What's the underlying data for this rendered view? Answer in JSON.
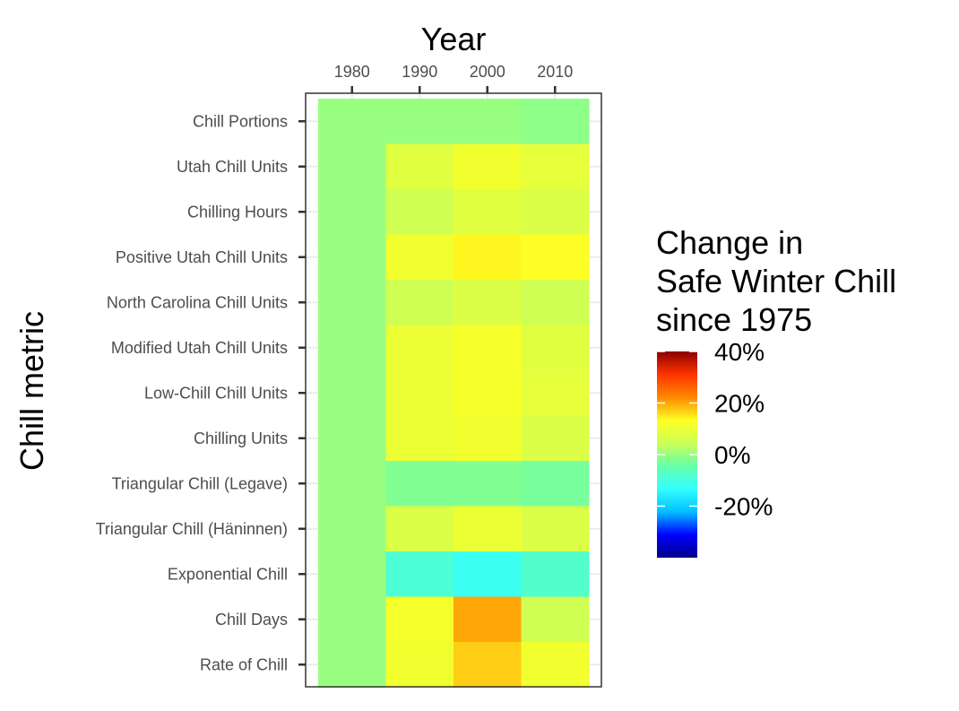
{
  "chart_data": {
    "type": "heatmap",
    "xlabel": "Year",
    "ylabel": "Chill metric",
    "x_ticks": [
      "1980",
      "1990",
      "2000",
      "2010"
    ],
    "x_categories": [
      1980,
      1990,
      2000,
      2010
    ],
    "y_categories": [
      "Chill Portions",
      "Utah Chill Units",
      "Chilling Hours",
      "Positive Utah Chill Units",
      "North Carolina Chill Units",
      "Modified Utah Chill Units",
      "Low-Chill Chill Units",
      "Chilling Units",
      "Triangular Chill (Legave)",
      "Triangular Chill (Häninnen)",
      "Exponential Chill",
      "Chill Days",
      "Rate of Chill"
    ],
    "values": [
      [
        0,
        0,
        0,
        -1
      ],
      [
        0,
        8,
        11,
        9
      ],
      [
        0,
        5,
        8,
        7
      ],
      [
        0,
        11,
        14,
        13
      ],
      [
        0,
        5,
        7,
        5
      ],
      [
        0,
        10,
        12,
        8
      ],
      [
        0,
        10,
        12,
        9
      ],
      [
        0,
        10,
        11,
        7
      ],
      [
        0,
        -2,
        -2,
        -3
      ],
      [
        0,
        7,
        10,
        7
      ],
      [
        0,
        -9,
        -12,
        -8
      ],
      [
        0,
        12,
        20,
        5
      ],
      [
        0,
        11,
        17,
        11
      ]
    ],
    "legend": {
      "title_lines": [
        "Change in",
        "Safe Winter Chill",
        "since 1975"
      ],
      "ticks": [
        {
          "label": "40%",
          "value": 40
        },
        {
          "label": "20%",
          "value": 20
        },
        {
          "label": "0%",
          "value": 0
        },
        {
          "label": "-20%",
          "value": -20
        }
      ],
      "range": [
        -40,
        40
      ],
      "colors": [
        "#00008B",
        "#0000FF",
        "#00BFFF",
        "#33FFFF",
        "#66FFAA",
        "#CCFF55",
        "#FFFF22",
        "#FF8800",
        "#FF3300",
        "#8B0000"
      ],
      "placement": "right"
    },
    "grid": true
  },
  "colors": {
    "background": "#ffffff",
    "panel_border": "#333333",
    "gridline": "#ebebeb",
    "text": "#000000",
    "tick_text": "#4d4d4d"
  }
}
